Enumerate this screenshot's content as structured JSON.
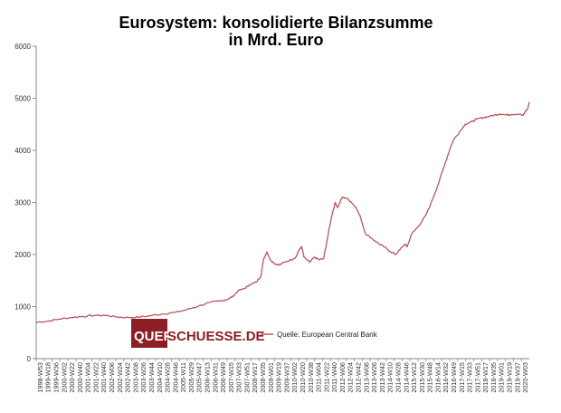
{
  "chart_data": {
    "type": "line",
    "title_lines": [
      "Eurosystem: konsolidierte Bilanzsumme",
      "in Mrd. Euro"
    ],
    "xlabel": "",
    "ylabel": "",
    "ylim": [
      0,
      6000
    ],
    "y_ticks": [
      "0",
      "1000",
      "2000",
      "3000",
      "4000",
      "5000",
      "6000"
    ],
    "grid": false,
    "legend_position": "bottom-center",
    "series_color": "#b5585f",
    "x_tick_labels": [
      "1998-W53",
      "1999-W18",
      "1999-W36",
      "2000-W02",
      "2000-W22",
      "2000-W40",
      "2001-W04",
      "2001-W22",
      "2001-W40",
      "2002-W06",
      "2002-W24",
      "2002-W42",
      "2003-W08",
      "2003-W26",
      "2003-W44",
      "2004-W10",
      "2004-W28",
      "2004-W46",
      "2005-W11",
      "2005-W29",
      "2005-W47",
      "2006-W13",
      "2006-W31",
      "2006-W49",
      "2007-W15",
      "2007-W33",
      "2007-W51",
      "2008-W17",
      "2008-W35",
      "2009-W01",
      "2009-W19",
      "2009-W37",
      "2010-W02",
      "2010-W20",
      "2010-W38",
      "2011-W04",
      "2011-W22",
      "2011-W40",
      "2012-W06",
      "2012-W24",
      "2012-W42",
      "2013-W08",
      "2013-W26",
      "2013-W42",
      "2014-W10",
      "2014-W28",
      "2014-W46",
      "2015-W12",
      "2015-W30",
      "2015-W48",
      "2016-W14",
      "2016-W32",
      "2016-W49",
      "2017-W15",
      "2017-W33",
      "2017-W51",
      "2018-W17",
      "2018-W35",
      "2019-W01",
      "2019-W19",
      "2019-W37",
      "2020-W03"
    ],
    "series": [
      {
        "name": "Quelle: European Central Bank",
        "x_years": [
          1999.0,
          1999.5,
          2000.0,
          2000.5,
          2001.0,
          2001.5,
          2002.0,
          2002.5,
          2003.0,
          2003.5,
          2004.0,
          2004.5,
          2005.0,
          2005.5,
          2006.0,
          2006.5,
          2007.0,
          2007.3,
          2007.5,
          2007.7,
          2008.0,
          2008.2,
          2008.5,
          2008.7,
          2008.8,
          2008.95,
          2009.1,
          2009.3,
          2009.5,
          2009.7,
          2010.0,
          2010.2,
          2010.35,
          2010.45,
          2010.55,
          2010.8,
          2011.0,
          2011.2,
          2011.4,
          2011.6,
          2011.75,
          2011.9,
          2012.0,
          2012.2,
          2012.4,
          2012.6,
          2012.8,
          2013.0,
          2013.2,
          2013.5,
          2013.8,
          2014.0,
          2014.3,
          2014.5,
          2014.7,
          2014.9,
          2015.0,
          2015.2,
          2015.5,
          2015.8,
          2016.0,
          2016.3,
          2016.6,
          2016.9,
          2017.0,
          2017.25,
          2017.5,
          2017.8,
          2018.0,
          2018.3,
          2018.5,
          2018.8,
          2019.0,
          2019.3,
          2019.5,
          2019.8,
          2020.0,
          2020.1,
          2020.2,
          2020.27
        ],
        "values": [
          700,
          720,
          760,
          790,
          810,
          830,
          830,
          800,
          790,
          800,
          830,
          860,
          890,
          940,
          1010,
          1080,
          1110,
          1150,
          1200,
          1300,
          1350,
          1420,
          1470,
          1600,
          1900,
          2050,
          1900,
          1820,
          1800,
          1850,
          1900,
          1950,
          2100,
          2150,
          1950,
          1850,
          1950,
          1900,
          1920,
          2400,
          2750,
          3000,
          2900,
          3100,
          3080,
          3000,
          2900,
          2700,
          2400,
          2300,
          2200,
          2150,
          2050,
          2000,
          2100,
          2200,
          2150,
          2400,
          2550,
          2750,
          2950,
          3300,
          3700,
          4100,
          4200,
          4350,
          4500,
          4550,
          4600,
          4630,
          4650,
          4680,
          4700,
          4680,
          4690,
          4700,
          4670,
          4750,
          4800,
          4930
        ]
      }
    ]
  },
  "logo": {
    "text_left": "QUER",
    "text_right": "SCHUESSE.DE"
  }
}
